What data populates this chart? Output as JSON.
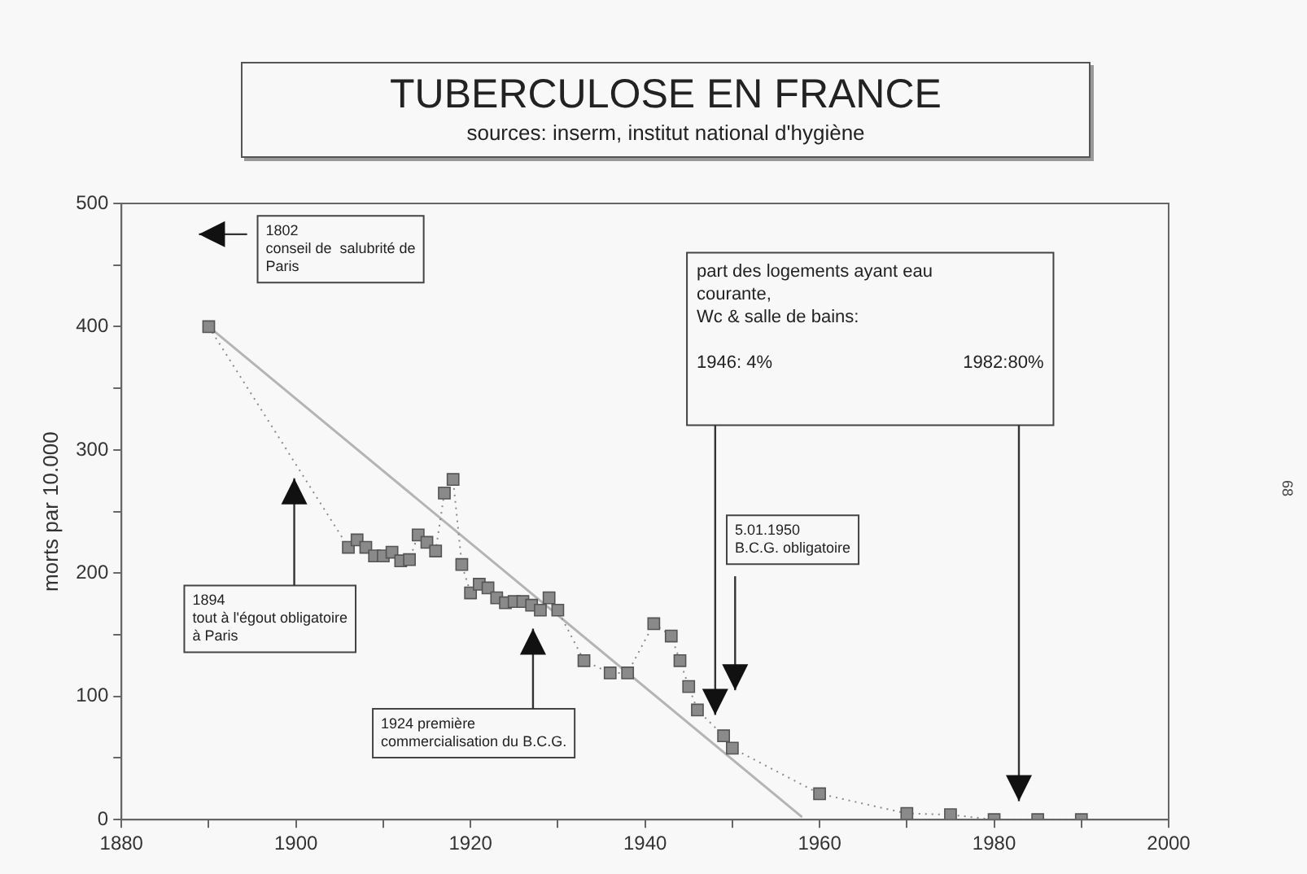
{
  "chart_data": {
    "type": "line",
    "title": "TUBERCULOSE EN FRANCE",
    "subtitle": "sources: inserm, institut national d'hygiène",
    "ylabel": "morts par 10.000",
    "xlim": [
      1880,
      2000
    ],
    "xticks": [
      1880,
      {
        "value": 1890,
        "label": null
      },
      1900,
      {
        "value": 1910,
        "label": null
      },
      1920,
      {
        "value": 1930,
        "label": null
      },
      1940,
      {
        "value": 1950,
        "label": null
      },
      1960,
      {
        "value": 1970,
        "label": null
      },
      1980,
      {
        "value": 1990,
        "label": null
      },
      2000
    ],
    "ylim": [
      0,
      500
    ],
    "yticks": [
      0,
      {
        "value": 50,
        "label": null
      },
      100,
      {
        "value": 150,
        "label": null
      },
      200,
      {
        "value": 250,
        "label": null
      },
      300,
      {
        "value": 350,
        "label": null
      },
      400,
      {
        "value": 450,
        "label": null
      },
      500
    ],
    "grid": false,
    "legend": false,
    "series": [
      {
        "marker": "square",
        "line_style": "dotted",
        "color": "#8a8a8a",
        "x": [
          1890,
          1906,
          1907,
          1908,
          1909,
          1910,
          1911,
          1912,
          1913,
          1914,
          1915,
          1916,
          1917,
          1918,
          1919,
          1920,
          1921,
          1922,
          1923,
          1924,
          1925,
          1926,
          1927,
          1928,
          1929,
          1930,
          1933,
          1936,
          1938,
          1941,
          1943,
          1944,
          1945,
          1946,
          1949,
          1950,
          1960,
          1970,
          1975,
          1980,
          1985,
          1990
        ],
        "values": [
          400,
          221,
          227,
          221,
          214,
          214,
          217,
          210,
          211,
          231,
          225,
          218,
          265,
          276,
          207,
          184,
          191,
          188,
          180,
          176,
          177,
          177,
          174,
          170,
          180,
          170,
          129,
          119,
          119,
          159,
          149,
          129,
          108,
          89,
          68,
          58,
          21,
          5,
          4,
          0,
          0,
          0
        ]
      },
      {
        "marker": "none",
        "line_style": "solid",
        "color": "#b4b4b4",
        "x": [
          1890,
          1958
        ],
        "values": [
          400,
          2
        ]
      }
    ],
    "annotations": [
      "1802\nconseil de  salubrité de\nParis",
      "1894\ntout à l'égout obligatoire\nà Paris",
      "1924 première\ncommercialisation du B.C.G.",
      "5.01.1950\nB.C.G. obligatoire",
      "part des logements ayant eau\ncourante,\nWc & salle de bains:",
      "1946: 4%",
      "1982:80%",
      "68"
    ]
  }
}
